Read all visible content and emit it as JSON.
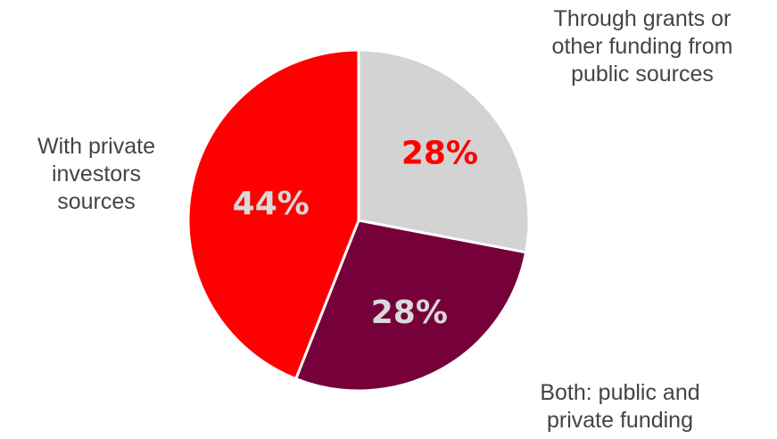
{
  "chart_data": {
    "type": "pie",
    "categories": [
      "Through grants or other funding from public sources",
      "Both: public and private funding",
      "With private investors sources"
    ],
    "values": [
      28,
      28,
      44
    ],
    "value_labels": [
      "28%",
      "28%",
      "44%"
    ],
    "colors": [
      "#d3d3d3",
      "#75003a",
      "#ff0000"
    ],
    "value_label_colors": [
      "#ff0000",
      "#d9d9d9",
      "#d9d9d9"
    ],
    "category_label_lines": [
      [
        "Through grants or",
        "other funding from",
        "public sources"
      ],
      [
        "Both: public and",
        "private funding"
      ],
      [
        "With private",
        "investors",
        "sources"
      ]
    ],
    "start_angle_deg": 0,
    "direction": "clockwise",
    "legend": "none"
  }
}
